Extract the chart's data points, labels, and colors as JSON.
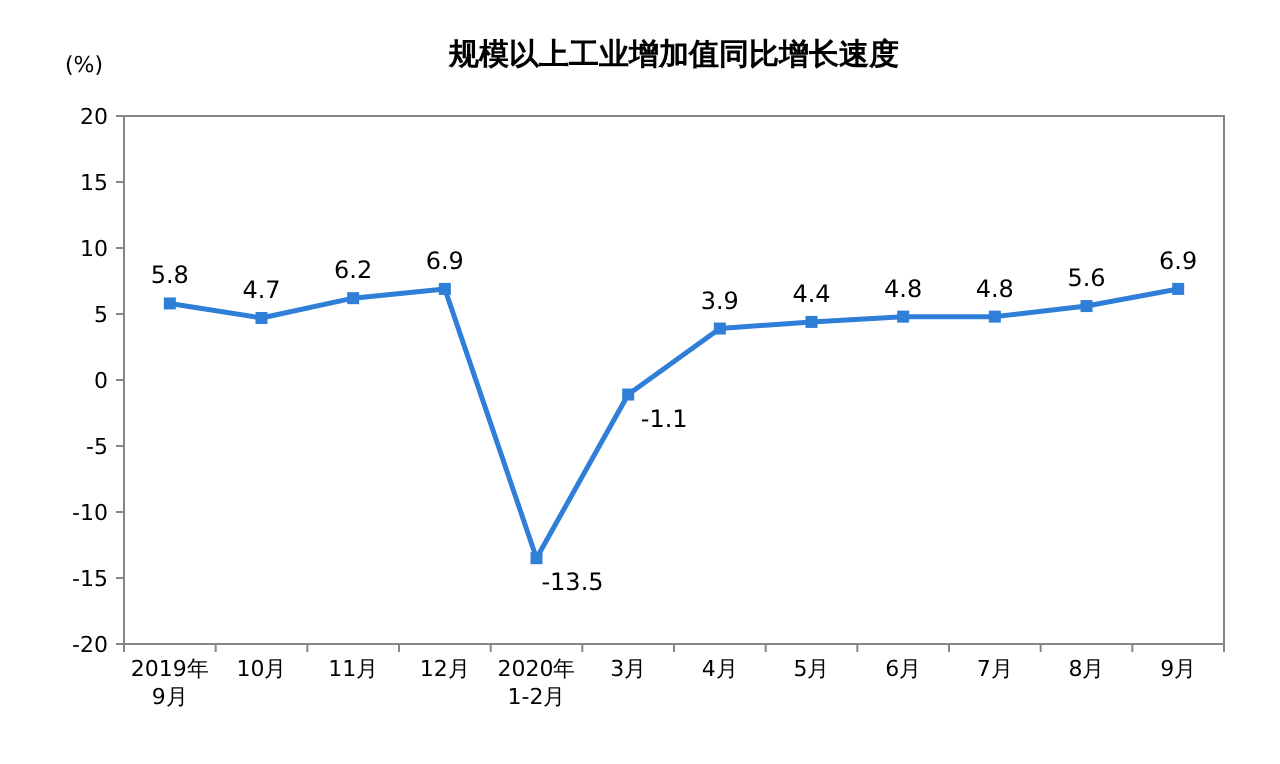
{
  "chart_data": {
    "type": "line",
    "title": "规模以上工业增加值同比增长速度",
    "ylabel": "(%)",
    "categories": [
      "2019年\n9月",
      "10月",
      "11月",
      "12月",
      "2020年\n1-2月",
      "3月",
      "4月",
      "5月",
      "6月",
      "7月",
      "8月",
      "9月"
    ],
    "series": [
      {
        "color": "#2f7ed8",
        "values": [
          5.8,
          4.7,
          6.2,
          6.9,
          -13.5,
          -1.1,
          3.9,
          4.4,
          4.8,
          4.8,
          5.6,
          6.9
        ]
      }
    ],
    "ylim": [
      -20,
      20
    ],
    "yticks": [
      -20,
      -15,
      -10,
      -5,
      0,
      5,
      10,
      15,
      20
    ],
    "data_labels": true,
    "marker": "square",
    "line_style": "solid",
    "grid": false
  }
}
